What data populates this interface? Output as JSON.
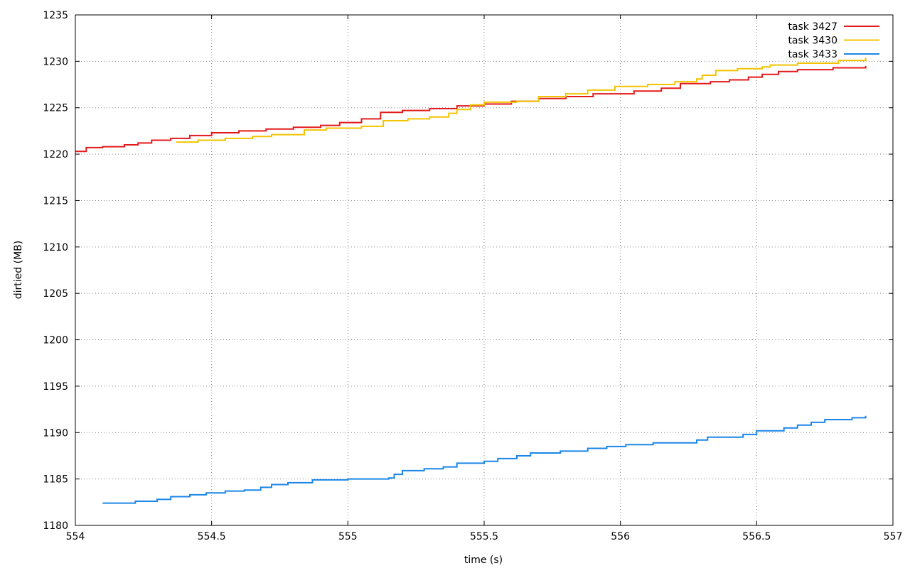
{
  "chart_data": {
    "type": "line",
    "title": "",
    "xlabel": "time (s)",
    "ylabel": "dirtied (MB)",
    "xlim": [
      554,
      557
    ],
    "ylim": [
      1180,
      1235
    ],
    "x_ticks": [
      "554",
      "554.5",
      "555",
      "555.5",
      "556",
      "556.5",
      "557"
    ],
    "y_ticks": [
      "1180",
      "1185",
      "1190",
      "1195",
      "1200",
      "1205",
      "1210",
      "1215",
      "1220",
      "1225",
      "1230",
      "1235"
    ],
    "grid": true,
    "legend_position": "top-right",
    "step": true,
    "series": [
      {
        "name": "task 3427",
        "color": "#e31a1c",
        "points": [
          [
            554.0,
            1220.3
          ],
          [
            554.04,
            1220.7
          ],
          [
            554.1,
            1220.8
          ],
          [
            554.18,
            1221.0
          ],
          [
            554.23,
            1221.2
          ],
          [
            554.28,
            1221.5
          ],
          [
            554.35,
            1221.7
          ],
          [
            554.42,
            1222.0
          ],
          [
            554.5,
            1222.3
          ],
          [
            554.6,
            1222.5
          ],
          [
            554.7,
            1222.7
          ],
          [
            554.8,
            1222.9
          ],
          [
            554.9,
            1223.1
          ],
          [
            554.97,
            1223.4
          ],
          [
            555.05,
            1223.8
          ],
          [
            555.12,
            1224.5
          ],
          [
            555.2,
            1224.7
          ],
          [
            555.3,
            1224.9
          ],
          [
            555.4,
            1225.2
          ],
          [
            555.5,
            1225.4
          ],
          [
            555.6,
            1225.7
          ],
          [
            555.7,
            1226.0
          ],
          [
            555.8,
            1226.2
          ],
          [
            555.9,
            1226.5
          ],
          [
            556.05,
            1226.8
          ],
          [
            556.15,
            1227.1
          ],
          [
            556.22,
            1227.6
          ],
          [
            556.33,
            1227.8
          ],
          [
            556.4,
            1228.0
          ],
          [
            556.47,
            1228.3
          ],
          [
            556.52,
            1228.6
          ],
          [
            556.58,
            1228.9
          ],
          [
            556.65,
            1229.1
          ],
          [
            556.78,
            1229.3
          ],
          [
            556.9,
            1229.5
          ]
        ]
      },
      {
        "name": "task 3430",
        "color": "#f2c400",
        "points": [
          [
            554.37,
            1221.3
          ],
          [
            554.45,
            1221.5
          ],
          [
            554.55,
            1221.7
          ],
          [
            554.65,
            1221.9
          ],
          [
            554.72,
            1222.1
          ],
          [
            554.84,
            1222.6
          ],
          [
            554.92,
            1222.8
          ],
          [
            555.05,
            1223.0
          ],
          [
            555.13,
            1223.6
          ],
          [
            555.22,
            1223.8
          ],
          [
            555.3,
            1224.0
          ],
          [
            555.37,
            1224.4
          ],
          [
            555.4,
            1224.8
          ],
          [
            555.45,
            1225.3
          ],
          [
            555.5,
            1225.6
          ],
          [
            555.62,
            1225.7
          ],
          [
            555.7,
            1226.2
          ],
          [
            555.8,
            1226.5
          ],
          [
            555.88,
            1226.9
          ],
          [
            555.98,
            1227.3
          ],
          [
            556.1,
            1227.5
          ],
          [
            556.2,
            1227.8
          ],
          [
            556.28,
            1228.1
          ],
          [
            556.3,
            1228.5
          ],
          [
            556.35,
            1229.0
          ],
          [
            556.43,
            1229.2
          ],
          [
            556.52,
            1229.4
          ],
          [
            556.55,
            1229.6
          ],
          [
            556.65,
            1229.8
          ],
          [
            556.8,
            1230.1
          ],
          [
            556.9,
            1230.4
          ]
        ]
      },
      {
        "name": "task 3433",
        "color": "#1b86e8",
        "points": [
          [
            554.1,
            1182.4
          ],
          [
            554.22,
            1182.6
          ],
          [
            554.3,
            1182.8
          ],
          [
            554.35,
            1183.1
          ],
          [
            554.42,
            1183.3
          ],
          [
            554.48,
            1183.5
          ],
          [
            554.55,
            1183.7
          ],
          [
            554.62,
            1183.8
          ],
          [
            554.68,
            1184.1
          ],
          [
            554.72,
            1184.4
          ],
          [
            554.78,
            1184.6
          ],
          [
            554.87,
            1184.9
          ],
          [
            555.0,
            1185.0
          ],
          [
            555.15,
            1185.1
          ],
          [
            555.17,
            1185.5
          ],
          [
            555.2,
            1185.9
          ],
          [
            555.28,
            1186.1
          ],
          [
            555.35,
            1186.3
          ],
          [
            555.4,
            1186.7
          ],
          [
            555.5,
            1186.9
          ],
          [
            555.55,
            1187.2
          ],
          [
            555.62,
            1187.5
          ],
          [
            555.67,
            1187.8
          ],
          [
            555.78,
            1188.0
          ],
          [
            555.88,
            1188.3
          ],
          [
            555.95,
            1188.5
          ],
          [
            556.02,
            1188.7
          ],
          [
            556.12,
            1188.9
          ],
          [
            556.28,
            1189.2
          ],
          [
            556.32,
            1189.5
          ],
          [
            556.45,
            1189.8
          ],
          [
            556.5,
            1190.2
          ],
          [
            556.6,
            1190.5
          ],
          [
            556.65,
            1190.8
          ],
          [
            556.7,
            1191.1
          ],
          [
            556.75,
            1191.4
          ],
          [
            556.85,
            1191.6
          ],
          [
            556.9,
            1191.8
          ]
        ]
      }
    ]
  }
}
